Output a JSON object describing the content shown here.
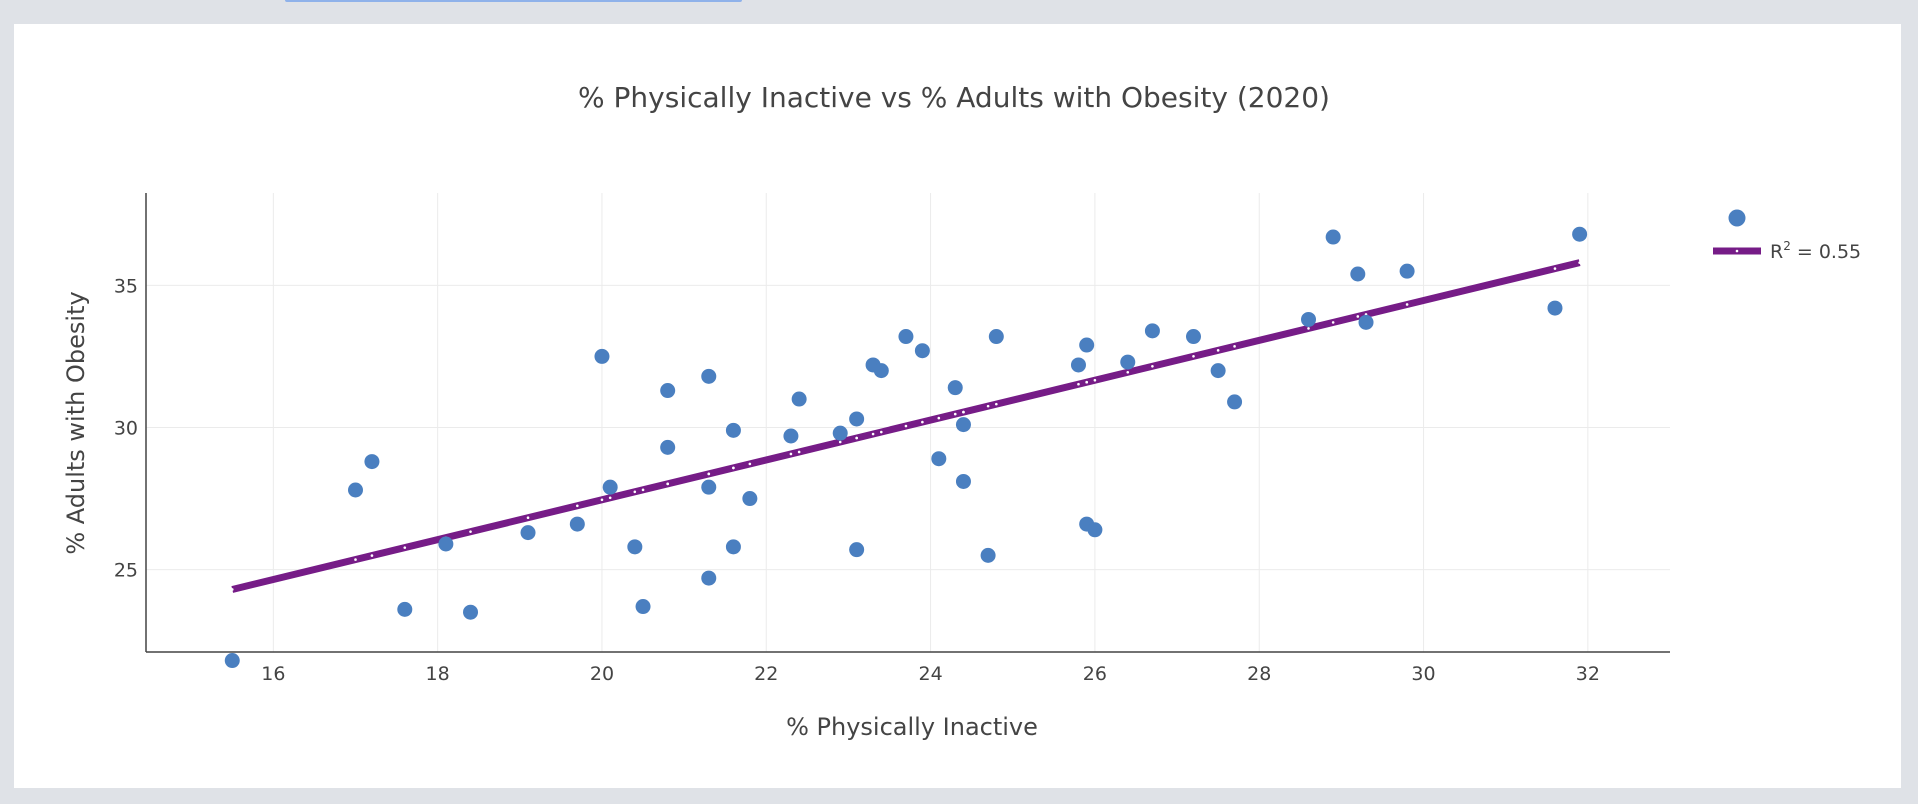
{
  "chart_data": {
    "type": "scatter",
    "title": "% Physically Inactive vs % Adults with Obesity (2020)",
    "xlabel": "% Physically Inactive",
    "ylabel": "% Adults with Obesity",
    "xlim": [
      14.45,
      33.0
    ],
    "ylim": [
      22.1,
      38.25
    ],
    "xticks": [
      16,
      18,
      20,
      22,
      24,
      26,
      28,
      30,
      32
    ],
    "yticks": [
      25,
      30,
      35
    ],
    "grid": true,
    "legend_placement": "top-right",
    "colors": {
      "points": "#4a7fc0",
      "trendline": "#761c87"
    },
    "points": [
      {
        "x": 15.5,
        "y": 21.8
      },
      {
        "x": 17.0,
        "y": 27.8
      },
      {
        "x": 17.2,
        "y": 28.8
      },
      {
        "x": 17.6,
        "y": 23.6
      },
      {
        "x": 18.1,
        "y": 25.9
      },
      {
        "x": 18.4,
        "y": 23.5
      },
      {
        "x": 19.1,
        "y": 26.3
      },
      {
        "x": 19.7,
        "y": 26.6
      },
      {
        "x": 20.0,
        "y": 32.5
      },
      {
        "x": 20.1,
        "y": 27.9
      },
      {
        "x": 20.4,
        "y": 25.8
      },
      {
        "x": 20.5,
        "y": 23.7
      },
      {
        "x": 20.8,
        "y": 31.3
      },
      {
        "x": 20.8,
        "y": 29.3
      },
      {
        "x": 21.3,
        "y": 31.8
      },
      {
        "x": 21.3,
        "y": 27.9
      },
      {
        "x": 21.3,
        "y": 24.7
      },
      {
        "x": 21.6,
        "y": 29.9
      },
      {
        "x": 21.6,
        "y": 25.8
      },
      {
        "x": 21.8,
        "y": 27.5
      },
      {
        "x": 22.3,
        "y": 29.7
      },
      {
        "x": 22.4,
        "y": 31.0
      },
      {
        "x": 22.9,
        "y": 29.8
      },
      {
        "x": 23.1,
        "y": 30.3
      },
      {
        "x": 23.1,
        "y": 25.7
      },
      {
        "x": 23.3,
        "y": 32.2
      },
      {
        "x": 23.4,
        "y": 32.0
      },
      {
        "x": 23.7,
        "y": 33.2
      },
      {
        "x": 23.9,
        "y": 32.7
      },
      {
        "x": 24.1,
        "y": 28.9
      },
      {
        "x": 24.3,
        "y": 31.4
      },
      {
        "x": 24.4,
        "y": 30.1
      },
      {
        "x": 24.4,
        "y": 28.1
      },
      {
        "x": 24.7,
        "y": 25.5
      },
      {
        "x": 24.8,
        "y": 33.2
      },
      {
        "x": 25.8,
        "y": 32.2
      },
      {
        "x": 25.9,
        "y": 32.9
      },
      {
        "x": 25.9,
        "y": 26.6
      },
      {
        "x": 26.0,
        "y": 26.4
      },
      {
        "x": 26.4,
        "y": 32.3
      },
      {
        "x": 26.7,
        "y": 33.4
      },
      {
        "x": 27.2,
        "y": 33.2
      },
      {
        "x": 27.5,
        "y": 32.0
      },
      {
        "x": 27.7,
        "y": 30.9
      },
      {
        "x": 28.6,
        "y": 33.8
      },
      {
        "x": 28.9,
        "y": 36.7
      },
      {
        "x": 29.2,
        "y": 35.4
      },
      {
        "x": 29.3,
        "y": 33.7
      },
      {
        "x": 29.8,
        "y": 35.5
      },
      {
        "x": 31.6,
        "y": 34.2
      },
      {
        "x": 31.9,
        "y": 36.8
      }
    ],
    "trendline": {
      "x": [
        15.5,
        31.9
      ],
      "y": [
        24.3,
        35.8
      ],
      "legend_base": "R",
      "legend_sup": "2",
      "legend_rest": " = 0.55"
    }
  }
}
